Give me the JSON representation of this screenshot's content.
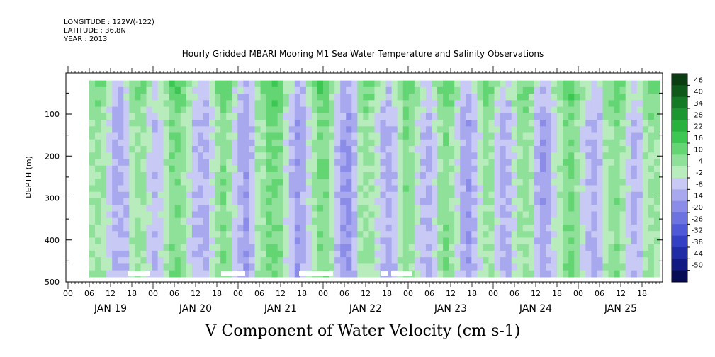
{
  "header": {
    "longitude": "LONGITUDE : 122W(-122)",
    "latitude": "LATITUDE : 36.8N",
    "year": "YEAR : 2013"
  },
  "chart_data": {
    "type": "heatmap",
    "title": "Hourly Gridded MBARI Mooring M1 Sea Water Temperature and Salinity Observations",
    "xlabel": "V Component of Water Velocity (cm s-1)",
    "ylabel": "DEPTH (m)",
    "ylim": [
      500,
      0
    ],
    "y_ticks": [
      100,
      200,
      300,
      400,
      500
    ],
    "x_hour_labels": [
      "00",
      "06",
      "12",
      "18"
    ],
    "x_days": [
      "JAN 19",
      "JAN 20",
      "JAN 21",
      "JAN 22",
      "JAN 23",
      "JAN 24",
      "JAN 25"
    ],
    "data_extent": {
      "time_start_hour_of_jan19": 6,
      "time_end_hour_of_jan25": 23,
      "depth_top": 20,
      "depth_bottom": 488
    },
    "colorbar": {
      "levels": [
        48,
        46,
        40,
        34,
        28,
        22,
        16,
        10,
        4,
        -2,
        -8,
        -14,
        -20,
        -26,
        -32,
        -38,
        -44,
        -50
      ],
      "labels": [
        "46",
        "40",
        "34",
        "28",
        "22",
        "16",
        "10",
        "4",
        "-2",
        "-8",
        "-14",
        "-20",
        "-26",
        "-32",
        "-38",
        "-44",
        "-50"
      ],
      "colors": [
        "#0b3d12",
        "#0f5a1b",
        "#157a25",
        "#1c9630",
        "#26b23c",
        "#3cc752",
        "#63d673",
        "#8fe19a",
        "#b8ecbd",
        "#c9c9f5",
        "#a8a8ef",
        "#8a8ce8",
        "#6c72e0",
        "#4f58d6",
        "#3440c4",
        "#1f2ca6",
        "#101a80",
        "#070d55"
      ]
    },
    "columns_mean_v": [
      4,
      6,
      2,
      -4,
      -8,
      -10,
      -6,
      2,
      6,
      4,
      -2,
      -6,
      -4,
      2,
      8,
      10,
      6,
      0,
      -6,
      -10,
      -8,
      -2,
      4,
      8,
      6,
      -4,
      -10,
      -12,
      -6,
      2,
      6,
      10,
      12,
      8,
      0,
      -8,
      -12,
      -10,
      -4,
      4,
      10,
      8,
      2,
      -6,
      -12,
      -14,
      -8,
      2,
      6,
      4,
      -2,
      -8,
      -10,
      -6,
      2,
      8,
      6,
      0,
      -6,
      -8,
      -4,
      4,
      8,
      6,
      -2,
      -10,
      -12,
      -8,
      0,
      6,
      4,
      -4,
      -10,
      -8,
      -2,
      4,
      6,
      2,
      -6,
      -12,
      -10,
      -4,
      2,
      8,
      10,
      6,
      -2,
      -8,
      -10,
      -6,
      2,
      6,
      8,
      4,
      -4,
      -8,
      -6,
      2,
      6,
      4
    ]
  }
}
